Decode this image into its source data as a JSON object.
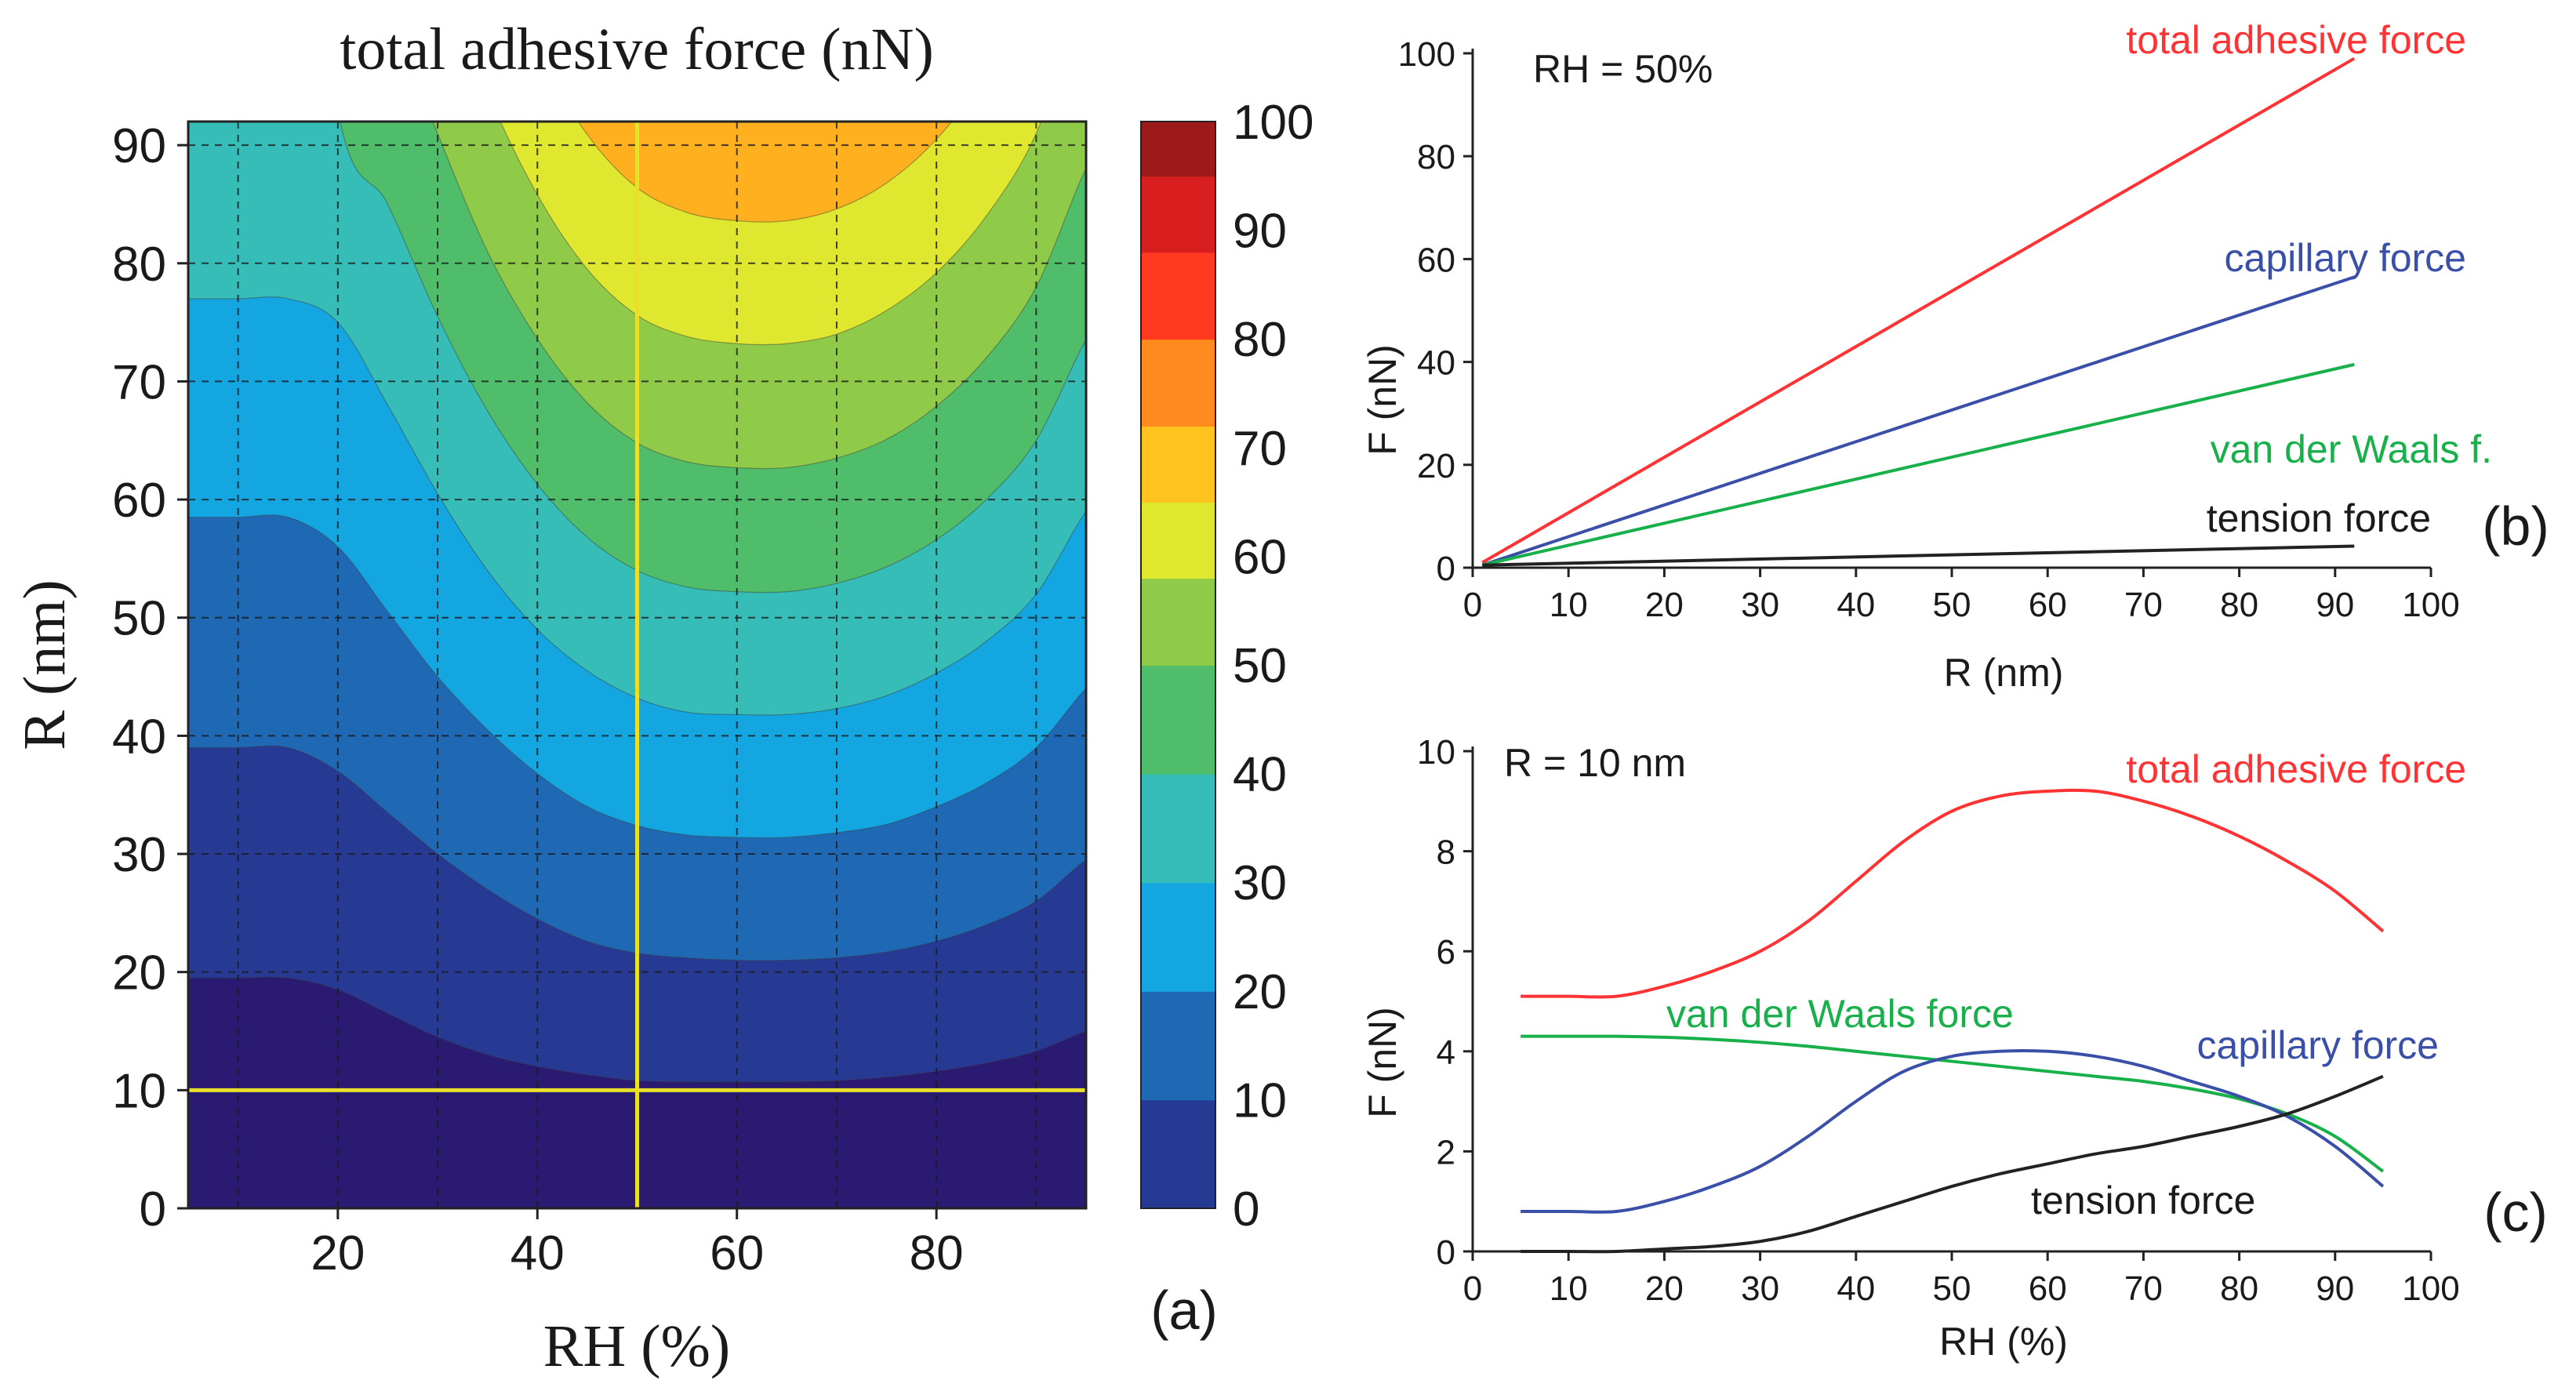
{
  "chart_data": [
    {
      "panel": "(a)",
      "type": "heatmap",
      "title": "total adhesive force (nN)",
      "xlabel": "RH (%)",
      "ylabel": "R (nm)",
      "xlim": [
        5,
        95
      ],
      "ylim": [
        0,
        92
      ],
      "xticks": [
        20,
        40,
        60,
        80
      ],
      "yticks": [
        0,
        10,
        20,
        30,
        40,
        50,
        60,
        70,
        80,
        90
      ],
      "grid": true,
      "colorbar": {
        "min": 0,
        "max": 100,
        "ticks": [
          0,
          10,
          20,
          30,
          40,
          50,
          60,
          70,
          80,
          90,
          100
        ]
      },
      "contour_levels": [
        10,
        20,
        30,
        40,
        50,
        60,
        70,
        80,
        90
      ],
      "marker_lines": {
        "RH": 50,
        "R": 10
      },
      "sampled_values": {
        "RH": [
          5,
          20,
          35,
          50,
          65,
          80,
          95
        ],
        "R": [
          10,
          30,
          50,
          70,
          90
        ],
        "F": [
          [
            5.1,
            5.3,
            7.5,
            8.9,
            9.2,
            8.4,
            6.3
          ],
          [
            15.5,
            16.5,
            23.0,
            27.5,
            28.0,
            26.5,
            21.5
          ],
          [
            25.7,
            27.5,
            38.5,
            45.5,
            46.5,
            44.0,
            35.5
          ],
          [
            36.0,
            38.5,
            54.0,
            64.0,
            66.0,
            62.0,
            50.0
          ],
          [
            46.0,
            49.5,
            69.0,
            82.0,
            84.0,
            79.0,
            64.0
          ]
        ]
      }
    },
    {
      "panel": "(b)",
      "type": "line",
      "annotation": "RH = 50%",
      "xlabel": "R (nm)",
      "ylabel": "F (nN)",
      "xlim": [
        0,
        100
      ],
      "ylim": [
        0,
        100
      ],
      "xticks": [
        0,
        10,
        20,
        30,
        40,
        50,
        60,
        70,
        80,
        90,
        100
      ],
      "yticks": [
        0,
        20,
        40,
        60,
        80,
        100
      ],
      "grid": false,
      "x": [
        1,
        92
      ],
      "series": [
        {
          "name": "total adhesive force",
          "color": "#ff3333",
          "values": [
            1,
            99
          ]
        },
        {
          "name": "capillary force",
          "color": "#3a4fa8",
          "values": [
            0.5,
            56.5
          ]
        },
        {
          "name": "van der Waals f.",
          "color": "#18b04a",
          "values": [
            0.5,
            39.5
          ]
        },
        {
          "name": "tension force",
          "color": "#222222",
          "values": [
            0.5,
            4.2
          ]
        }
      ]
    },
    {
      "panel": "(c)",
      "type": "line",
      "annotation": "R = 10 nm",
      "xlabel": "RH (%)",
      "ylabel": "F (nN)",
      "xlim": [
        0,
        100
      ],
      "ylim": [
        0,
        10
      ],
      "xticks": [
        0,
        10,
        20,
        30,
        40,
        50,
        60,
        70,
        80,
        90,
        100
      ],
      "yticks": [
        0,
        2,
        4,
        6,
        8,
        10
      ],
      "grid": false,
      "x": [
        5,
        10,
        15,
        20,
        25,
        30,
        35,
        40,
        45,
        50,
        55,
        60,
        65,
        70,
        75,
        80,
        85,
        90,
        95
      ],
      "series": [
        {
          "name": "total adhesive force",
          "color": "#ff3333",
          "values": [
            5.1,
            5.1,
            5.1,
            5.3,
            5.6,
            6.0,
            6.6,
            7.4,
            8.2,
            8.8,
            9.1,
            9.2,
            9.2,
            9.0,
            8.7,
            8.3,
            7.8,
            7.2,
            6.4
          ]
        },
        {
          "name": "van der Waals force",
          "color": "#18b04a",
          "values": [
            4.3,
            4.3,
            4.3,
            4.28,
            4.24,
            4.18,
            4.1,
            4.0,
            3.9,
            3.8,
            3.7,
            3.6,
            3.5,
            3.4,
            3.25,
            3.05,
            2.75,
            2.3,
            1.6
          ]
        },
        {
          "name": "capillary force",
          "color": "#3a4fa8",
          "values": [
            0.8,
            0.8,
            0.8,
            1.0,
            1.3,
            1.7,
            2.3,
            3.0,
            3.6,
            3.9,
            4.0,
            4.0,
            3.9,
            3.7,
            3.4,
            3.1,
            2.7,
            2.1,
            1.3
          ]
        },
        {
          "name": "tension force",
          "color": "#222222",
          "values": [
            0.0,
            0.0,
            0.0,
            0.05,
            0.1,
            0.2,
            0.4,
            0.7,
            1.0,
            1.3,
            1.55,
            1.75,
            1.95,
            2.1,
            2.3,
            2.5,
            2.75,
            3.1,
            3.5
          ]
        }
      ]
    }
  ],
  "colors": {
    "colormap": [
      "#2b1a72",
      "#24368f",
      "#2262ad",
      "#1f86c6",
      "#1ba5df",
      "#2fc0c4",
      "#34b987",
      "#4cba5c",
      "#8fcc48",
      "#e2e626",
      "#ffc21e",
      "#ff961e",
      "#ff5a20",
      "#e6201d",
      "#a51c1c"
    ],
    "marker_line": "#e8e02a"
  }
}
